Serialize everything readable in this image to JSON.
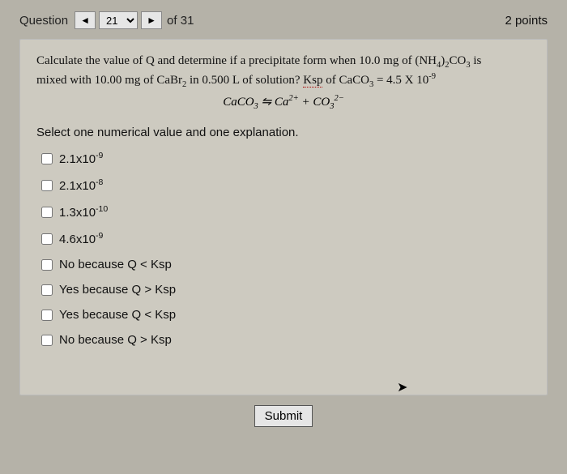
{
  "header": {
    "question_label": "Question",
    "prev_symbol": "◄",
    "next_symbol": "►",
    "current_number": "21",
    "of_label": "of 31",
    "points": "2 points"
  },
  "prompt": {
    "line1_a": "Calculate the value of Q and determine if a precipitate form when 10.0 mg of (NH",
    "line1_b": ")",
    "line1_c": "CO",
    "line1_d": " is",
    "line2_a": "mixed with 10.00 mg of CaBr",
    "line2_b": " in 0.500 L of solution? ",
    "ksp_word": "Ksp",
    "line2_c": " of CaCO",
    "line2_d": " = 4.5 X 10",
    "eq_a": "CaCO",
    "eq_arrow": " ⇋ Ca",
    "eq_b": " + CO"
  },
  "instruction": "Select one numerical value and one explanation.",
  "options": [
    {
      "html": "2.1x10<sup>-9</sup>"
    },
    {
      "html": "2.1x10<sup>-8</sup>"
    },
    {
      "html": "1.3x10<sup>-10</sup>"
    },
    {
      "html": "4.6x10<sup>-9</sup>"
    },
    {
      "html": "No because Q &lt; Ksp"
    },
    {
      "html": "Yes because Q &gt; Ksp"
    },
    {
      "html": "Yes because Q &lt; Ksp"
    },
    {
      "html": "No because Q &gt; Ksp"
    }
  ],
  "submit_label": "Submit"
}
